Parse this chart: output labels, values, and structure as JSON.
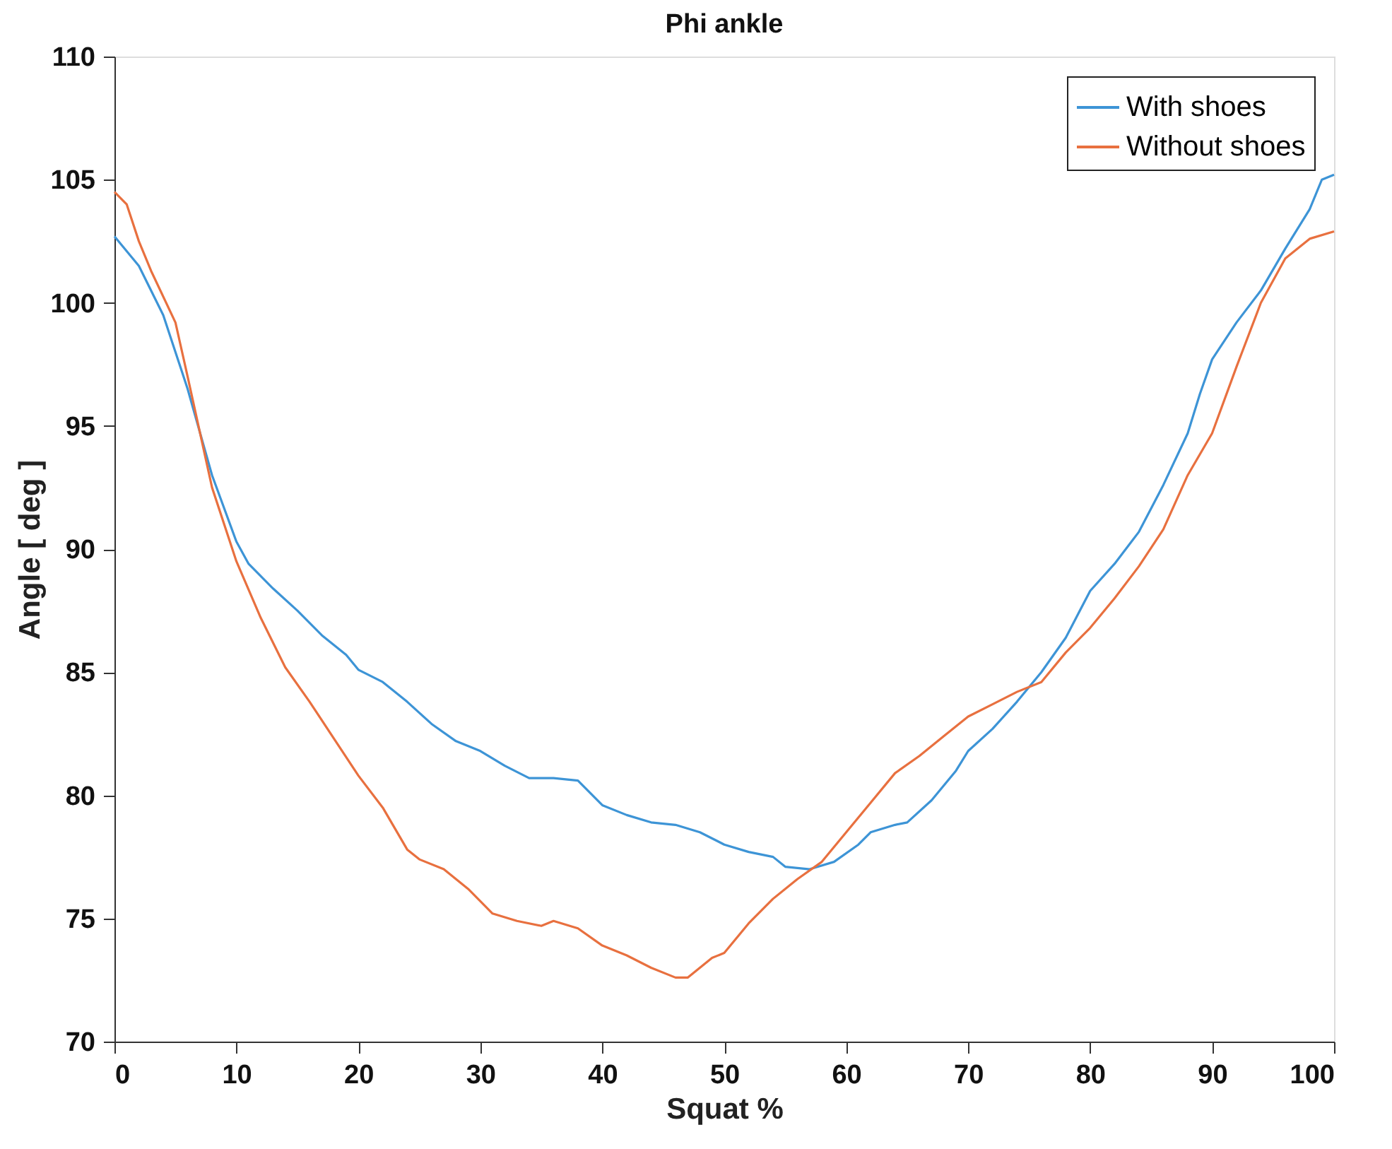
{
  "chart_data": {
    "type": "line",
    "title": "Phi ankle",
    "xlabel": "Squat %",
    "ylabel": "Angle [ deg ]",
    "xlim": [
      0,
      100
    ],
    "xticks": [
      0,
      10,
      20,
      30,
      40,
      50,
      60,
      70,
      80,
      90,
      100
    ],
    "ylim": [
      70,
      110
    ],
    "yticks": [
      70,
      75,
      80,
      85,
      90,
      95,
      100,
      105,
      110
    ],
    "grid": false,
    "legend": "top right",
    "line_style": "solid",
    "marker": "none",
    "series": [
      {
        "name": "With shoes",
        "color": "#3d94d6",
        "x": [
          0,
          2,
          4,
          6,
          8,
          10,
          11,
          13,
          15,
          17,
          19,
          20,
          22,
          24,
          26,
          28,
          30,
          32,
          34,
          36,
          38,
          40,
          42,
          44,
          46,
          48,
          50,
          52,
          54,
          55,
          57,
          59,
          61,
          62,
          64,
          65,
          67,
          69,
          70,
          72,
          74,
          76,
          78,
          80,
          82,
          84,
          86,
          88,
          89,
          90,
          92,
          94,
          96,
          98,
          99,
          100
        ],
        "values": [
          102.7,
          101.5,
          99.5,
          96.5,
          93,
          90.3,
          89.4,
          88.4,
          87.5,
          86.5,
          85.7,
          85.1,
          84.6,
          83.8,
          82.9,
          82.2,
          81.8,
          81.2,
          80.7,
          80.7,
          80.6,
          79.6,
          79.2,
          78.9,
          78.8,
          78.5,
          78.0,
          77.7,
          77.5,
          77.1,
          77.0,
          77.3,
          78.0,
          78.5,
          78.8,
          78.9,
          79.8,
          81.0,
          81.8,
          82.7,
          83.8,
          85.0,
          86.4,
          88.3,
          89.4,
          90.7,
          92.6,
          94.7,
          96.3,
          97.7,
          99.2,
          100.5,
          102.2,
          103.8,
          105.0,
          105.2
        ]
      },
      {
        "name": "Without shoes",
        "color": "#e8703f",
        "x": [
          0,
          1,
          2,
          3,
          5,
          6,
          8,
          10,
          12,
          14,
          16,
          18,
          20,
          22,
          24,
          25,
          27,
          29,
          31,
          33,
          35,
          36,
          38,
          40,
          42,
          44,
          46,
          47,
          49,
          50,
          52,
          54,
          56,
          58,
          60,
          62,
          64,
          66,
          68,
          70,
          72,
          74,
          76,
          78,
          80,
          82,
          84,
          86,
          88,
          90,
          92,
          94,
          96,
          98,
          100
        ],
        "values": [
          104.5,
          104.0,
          102.5,
          101.3,
          99.2,
          97,
          92.5,
          89.5,
          87.2,
          85.2,
          83.8,
          82.3,
          80.8,
          79.5,
          77.8,
          77.4,
          77.0,
          76.2,
          75.2,
          74.9,
          74.7,
          74.9,
          74.6,
          73.9,
          73.5,
          73.0,
          72.6,
          72.6,
          73.4,
          73.6,
          74.8,
          75.8,
          76.6,
          77.3,
          78.5,
          79.7,
          80.9,
          81.6,
          82.4,
          83.2,
          83.7,
          84.2,
          84.6,
          85.8,
          86.8,
          88.0,
          89.3,
          90.8,
          93.0,
          94.7,
          97.4,
          100,
          101.8,
          102.6,
          102.9
        ]
      }
    ]
  }
}
